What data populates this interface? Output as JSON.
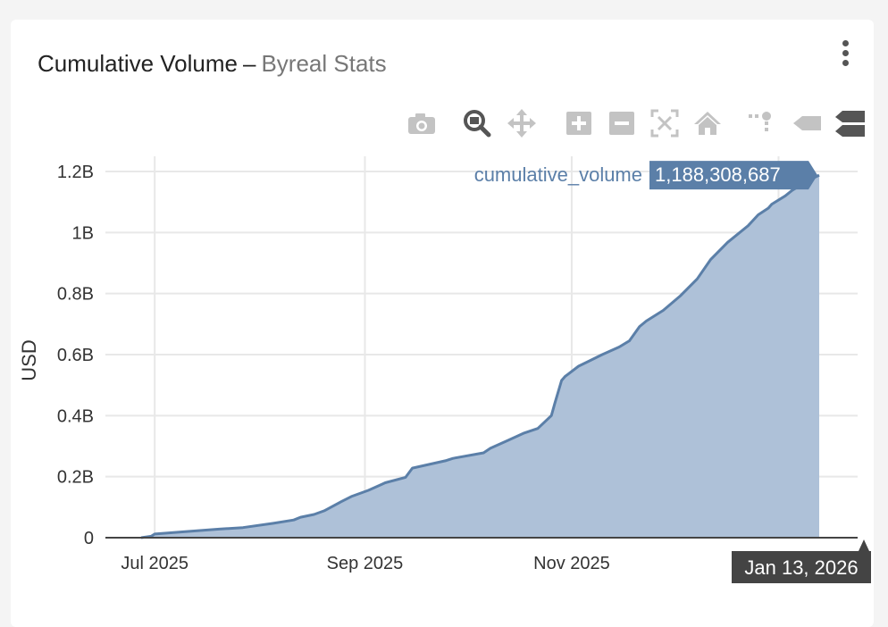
{
  "header": {
    "title": "Cumulative Volume",
    "separator": "–",
    "subtitle": "Byreal Stats"
  },
  "modebar": {
    "buttons": [
      {
        "name": "camera-icon"
      },
      {
        "name": "zoom-icon"
      },
      {
        "name": "pan-icon"
      },
      {
        "name": "zoom-in-icon"
      },
      {
        "name": "zoom-out-icon"
      },
      {
        "name": "autoscale-icon"
      },
      {
        "name": "home-icon"
      },
      {
        "name": "spike-lines-icon"
      },
      {
        "name": "hover-closest-icon"
      },
      {
        "name": "hover-compare-icon"
      }
    ]
  },
  "colors": {
    "line": "#5b7fa8",
    "fill": "#aec1d8",
    "grid": "#e8e8e8",
    "tooltip_bg": "#5b7fa8",
    "x_tooltip_bg": "#444444"
  },
  "hover": {
    "series_label": "cumulative_volume",
    "value_label": "1,188,308,687",
    "x_label": "Jan 13, 2026"
  },
  "chart_data": {
    "type": "area",
    "title": "Cumulative Volume – Byreal Stats",
    "xlabel": "",
    "ylabel": "USD",
    "ylim": [
      0,
      1.2
    ],
    "y_unit": "billions USD",
    "yticks": [
      0,
      0.2,
      0.4,
      0.6,
      0.8,
      1.0,
      1.2
    ],
    "ytick_labels": [
      "0",
      "0.2B",
      "0.4B",
      "0.6B",
      "0.8B",
      "1B",
      "1.2B"
    ],
    "xlim": [
      "2025-06-27",
      "2026-01-23"
    ],
    "xticks": [
      "2025-07-01",
      "2025-09-01",
      "2025-11-01",
      "2026-01-01"
    ],
    "xtick_labels": [
      "Jul 2025",
      "Sep 2025",
      "Nov 2025",
      ""
    ],
    "grid": true,
    "series": [
      {
        "name": "cumulative_volume",
        "x": [
          "2025-06-27",
          "2025-06-30",
          "2025-07-01",
          "2025-07-10",
          "2025-07-20",
          "2025-07-27",
          "2025-08-05",
          "2025-08-11",
          "2025-08-13",
          "2025-08-17",
          "2025-08-20",
          "2025-08-25",
          "2025-08-28",
          "2025-09-02",
          "2025-09-06",
          "2025-09-07",
          "2025-09-13",
          "2025-09-15",
          "2025-09-25",
          "2025-09-27",
          "2025-10-06",
          "2025-10-08",
          "2025-10-13",
          "2025-10-18",
          "2025-10-22",
          "2025-10-26",
          "2025-10-27",
          "2025-10-29",
          "2025-10-30",
          "2025-11-03",
          "2025-11-06",
          "2025-11-10",
          "2025-11-15",
          "2025-11-18",
          "2025-11-21",
          "2025-11-23",
          "2025-11-28",
          "2025-12-03",
          "2025-12-08",
          "2025-12-12",
          "2025-12-17",
          "2025-12-23",
          "2025-12-26",
          "2025-12-29",
          "2025-12-30",
          "2026-01-03",
          "2026-01-05",
          "2026-01-08",
          "2026-01-10",
          "2026-01-13"
        ],
        "values": [
          0.0,
          0.005,
          0.012,
          0.02,
          0.028,
          0.033,
          0.047,
          0.058,
          0.067,
          0.076,
          0.088,
          0.118,
          0.135,
          0.155,
          0.175,
          0.18,
          0.198,
          0.228,
          0.253,
          0.26,
          0.278,
          0.293,
          0.318,
          0.343,
          0.358,
          0.4,
          0.44,
          0.515,
          0.528,
          0.562,
          0.578,
          0.6,
          0.625,
          0.645,
          0.692,
          0.71,
          0.745,
          0.792,
          0.848,
          0.912,
          0.968,
          1.022,
          1.058,
          1.08,
          1.093,
          1.12,
          1.138,
          1.158,
          1.172,
          1.188
        ]
      }
    ]
  }
}
